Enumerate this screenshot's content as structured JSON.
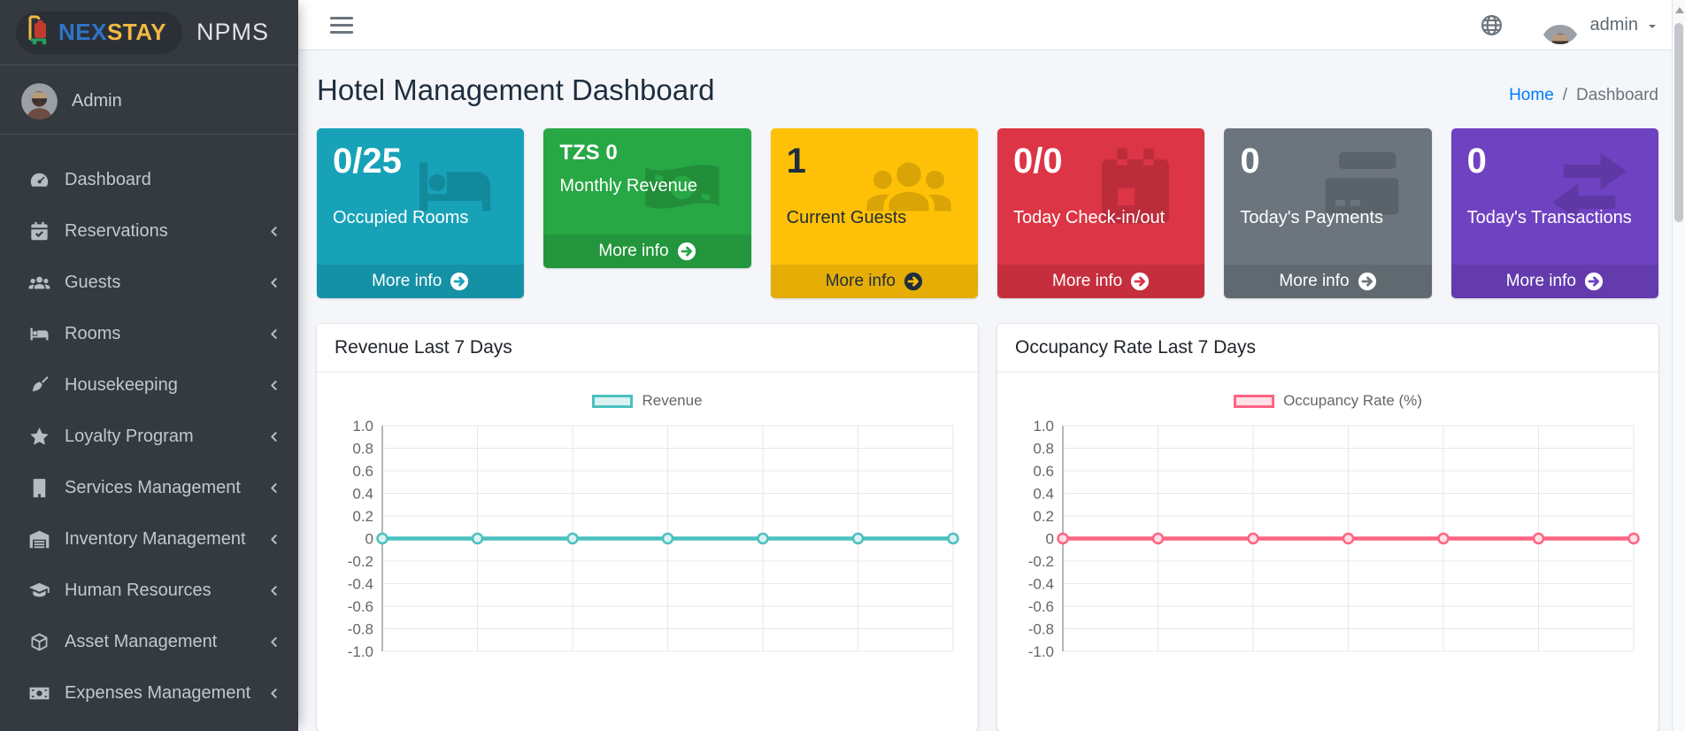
{
  "brand": {
    "logo_primary": "NEX",
    "logo_secondary": "STAY",
    "logo_primary_color": "#2e75c8",
    "logo_secondary_color": "#f2b844",
    "app_name": "NPMS"
  },
  "sidebar": {
    "user": {
      "name": "Admin"
    },
    "items": [
      {
        "label": "Dashboard",
        "icon": "tachometer-icon",
        "has_submenu": false
      },
      {
        "label": "Reservations",
        "icon": "calendar-check-icon",
        "has_submenu": true
      },
      {
        "label": "Guests",
        "icon": "users-icon",
        "has_submenu": true
      },
      {
        "label": "Rooms",
        "icon": "bed-icon",
        "has_submenu": true
      },
      {
        "label": "Housekeeping",
        "icon": "broom-icon",
        "has_submenu": true
      },
      {
        "label": "Loyalty Program",
        "icon": "star-icon",
        "has_submenu": true
      },
      {
        "label": "Services Management",
        "icon": "building-icon",
        "has_submenu": true
      },
      {
        "label": "Inventory Management",
        "icon": "warehouse-icon",
        "has_submenu": true
      },
      {
        "label": "Human Resources",
        "icon": "graduation-cap-icon",
        "has_submenu": true
      },
      {
        "label": "Asset Management",
        "icon": "box-icon",
        "has_submenu": true
      },
      {
        "label": "Expenses Management",
        "icon": "money-bill-icon",
        "has_submenu": true
      }
    ]
  },
  "navbar": {
    "username": "admin",
    "icons": [
      "hamburger-icon",
      "globe-icon",
      "caret-down-icon"
    ]
  },
  "page": {
    "title": "Hotel Management Dashboard",
    "breadcrumb": {
      "home": "Home",
      "separator": "/",
      "current": "Dashboard",
      "link_color": "#007bff"
    }
  },
  "info_boxes": [
    {
      "value": "0/25",
      "label": "Occupied Rooms",
      "more_label": "More info",
      "color": "#17a2b8",
      "text_color": "#ffffff",
      "icon": "bed-icon"
    },
    {
      "value": "TZS 0",
      "label": "Monthly Revenue",
      "more_label": "More info",
      "color": "#28a745",
      "text_color": "#ffffff",
      "icon": "money-bill-icon"
    },
    {
      "value": "1",
      "label": "Current Guests",
      "more_label": "More info",
      "color": "#ffc107",
      "text_color": "#1f2d3d",
      "icon": "users-icon"
    },
    {
      "value": "0/0",
      "label": "Today Check-in/out",
      "more_label": "More info",
      "color": "#dc3545",
      "text_color": "#ffffff",
      "icon": "calendar-icon"
    },
    {
      "value": "0",
      "label": "Today's Payments",
      "more_label": "More info",
      "color": "#6c757d",
      "text_color": "#ffffff",
      "icon": "credit-card-icon"
    },
    {
      "value": "0",
      "label": "Today's Transactions",
      "more_label": "More info",
      "color": "#6f42c1",
      "text_color": "#ffffff",
      "icon": "exchange-icon"
    }
  ],
  "chart_data": [
    {
      "type": "line",
      "title": "Revenue Last 7 Days",
      "series": [
        {
          "name": "Revenue",
          "values": [
            0,
            0,
            0,
            0,
            0,
            0,
            0
          ]
        }
      ],
      "color": "#4bc0c0",
      "fill_color": "#dbf2f2",
      "ylim": [
        -1,
        1
      ],
      "y_ticks": [
        1.0,
        0.8,
        0.6,
        0.4,
        0.2,
        0,
        -0.2,
        -0.4,
        -0.6,
        -0.8,
        -1.0
      ],
      "num_points": 7,
      "grid": true,
      "legend_position": "top",
      "x_axis_labels_visible": false
    },
    {
      "type": "line",
      "title": "Occupancy Rate Last 7 Days",
      "series": [
        {
          "name": "Occupancy Rate (%)",
          "values": [
            0,
            0,
            0,
            0,
            0,
            0,
            0
          ]
        }
      ],
      "color": "#ff6384",
      "fill_color": "#ffe0e6",
      "ylim": [
        -1,
        1
      ],
      "y_ticks": [
        1.0,
        0.8,
        0.6,
        0.4,
        0.2,
        0,
        -0.2,
        -0.4,
        -0.6,
        -0.8,
        -1.0
      ],
      "num_points": 7,
      "grid": true,
      "legend_position": "top",
      "x_axis_labels_visible": false
    }
  ]
}
